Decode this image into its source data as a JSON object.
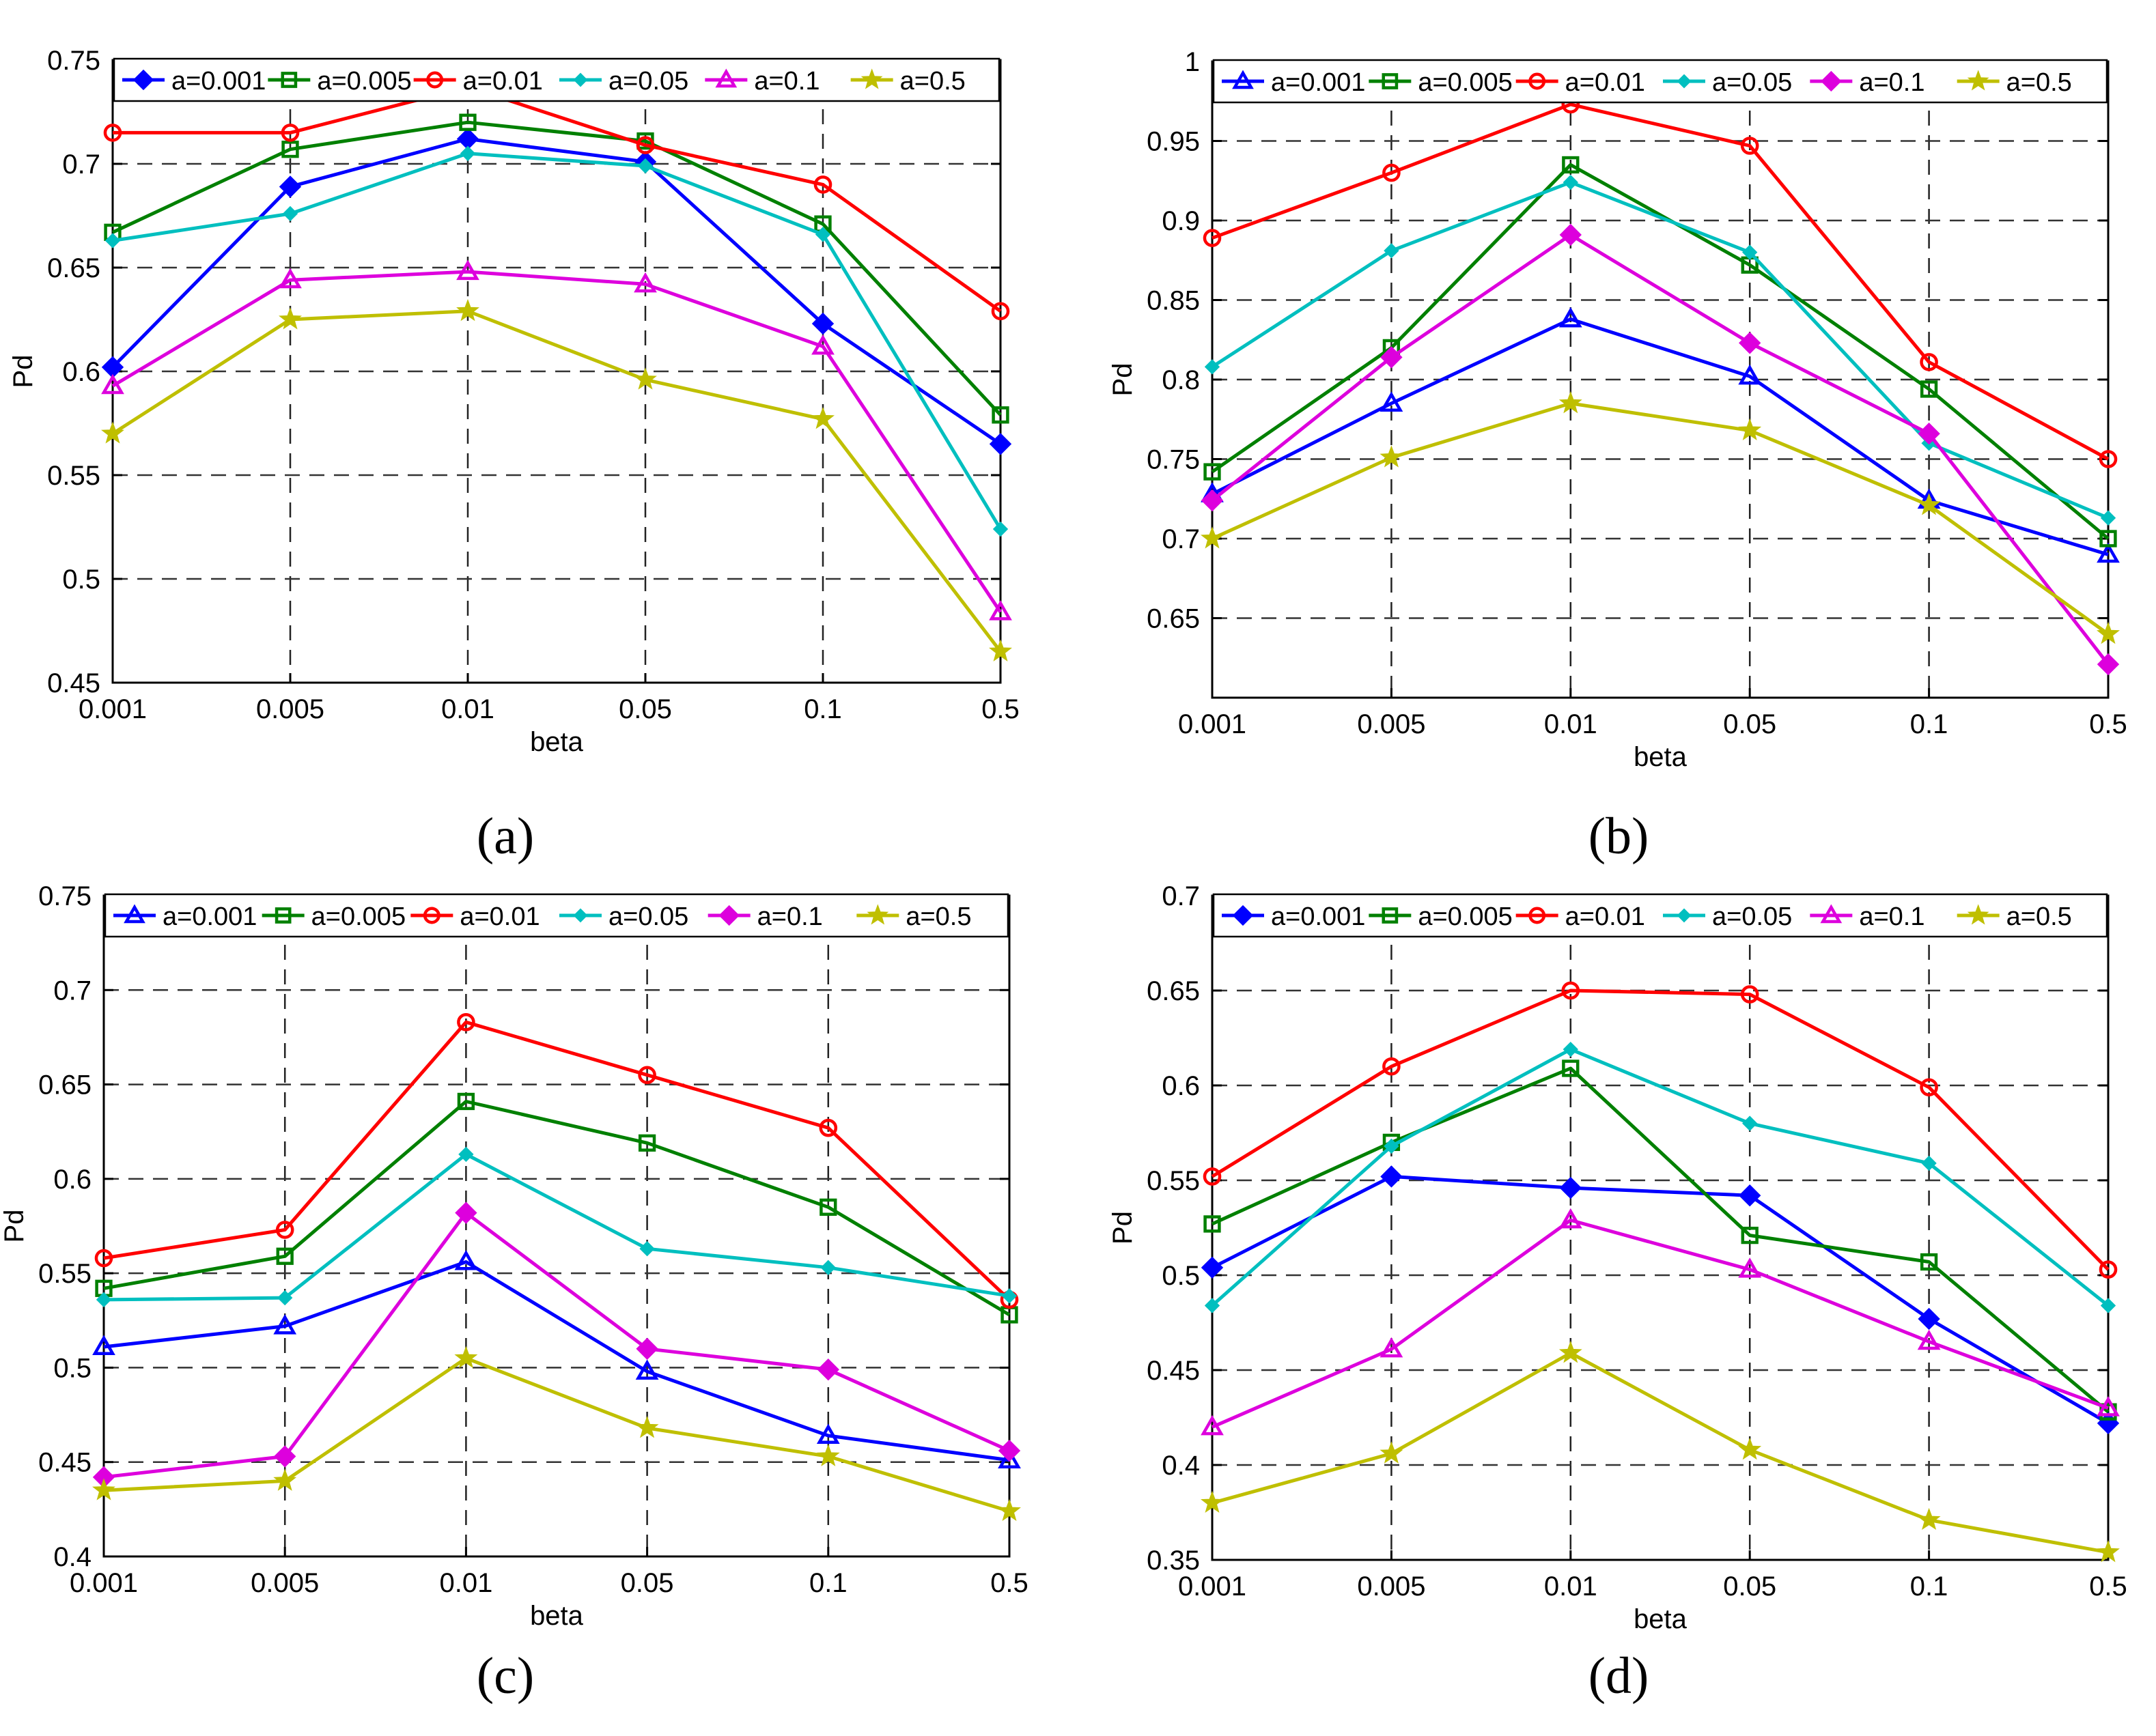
{
  "captions": [
    "(a)",
    "(b)",
    "(c)",
    "(d)"
  ],
  "chart_data": [
    {
      "type": "line",
      "caption": "(a)",
      "xlabel": "beta",
      "ylabel": "Pd",
      "categories": [
        "0.001",
        "0.005",
        "0.01",
        "0.05",
        "0.1",
        "0.5"
      ],
      "ylim": [
        0.45,
        0.75
      ],
      "yticks": [
        0.45,
        0.5,
        0.55,
        0.6,
        0.65,
        0.7,
        0.75
      ],
      "ytick_labels": [
        "0.45",
        "0.5",
        "0.55",
        "0.6",
        "0.65",
        "0.7",
        "0.75"
      ],
      "grid": true,
      "legend_position": "top",
      "series": [
        {
          "name": "a=0.001",
          "color": "#0000ff",
          "marker": "diamond",
          "values": [
            0.602,
            0.689,
            0.712,
            0.701,
            0.623,
            0.565
          ]
        },
        {
          "name": "a=0.005",
          "color": "#008000",
          "marker": "square",
          "values": [
            0.667,
            0.707,
            0.72,
            0.711,
            0.671,
            0.579
          ]
        },
        {
          "name": "a=0.01",
          "color": "#ff0000",
          "marker": "circle",
          "values": [
            0.715,
            0.715,
            0.737,
            0.709,
            0.69,
            0.629
          ]
        },
        {
          "name": "a=0.05",
          "color": "#00bfbf",
          "marker": "dot",
          "values": [
            0.663,
            0.676,
            0.705,
            0.699,
            0.666,
            0.524
          ]
        },
        {
          "name": "a=0.1",
          "color": "#dd00dd",
          "marker": "triangle",
          "values": [
            0.593,
            0.644,
            0.648,
            0.642,
            0.612,
            0.484
          ]
        },
        {
          "name": "a=0.5",
          "color": "#bfbf00",
          "marker": "star",
          "values": [
            0.57,
            0.625,
            0.629,
            0.596,
            0.577,
            0.465
          ]
        }
      ]
    },
    {
      "type": "line",
      "caption": "(b)",
      "xlabel": "beta",
      "ylabel": "Pd",
      "categories": [
        "0.001",
        "0.005",
        "0.01",
        "0.05",
        "0.1",
        "0.5"
      ],
      "ylim": [
        0.6,
        1.0
      ],
      "yticks": [
        0.65,
        0.7,
        0.75,
        0.8,
        0.85,
        0.9,
        0.95,
        1.0
      ],
      "ytick_labels": [
        "0.65",
        "0.7",
        "0.75",
        "0.8",
        "0.85",
        "0.9",
        "0.95",
        "1"
      ],
      "grid": true,
      "legend_position": "top",
      "series": [
        {
          "name": "a=0.001",
          "color": "#0000ff",
          "marker": "triangle",
          "values": [
            0.728,
            0.785,
            0.838,
            0.802,
            0.724,
            0.69
          ]
        },
        {
          "name": "a=0.005",
          "color": "#008000",
          "marker": "square",
          "values": [
            0.742,
            0.82,
            0.935,
            0.872,
            0.794,
            0.7
          ]
        },
        {
          "name": "a=0.01",
          "color": "#ff0000",
          "marker": "circle",
          "values": [
            0.889,
            0.93,
            0.973,
            0.947,
            0.811,
            0.75
          ]
        },
        {
          "name": "a=0.05",
          "color": "#00bfbf",
          "marker": "dot",
          "values": [
            0.808,
            0.881,
            0.924,
            0.88,
            0.76,
            0.713
          ]
        },
        {
          "name": "a=0.1",
          "color": "#dd00dd",
          "marker": "diamond",
          "values": [
            0.724,
            0.814,
            0.891,
            0.823,
            0.766,
            0.621
          ]
        },
        {
          "name": "a=0.5",
          "color": "#bfbf00",
          "marker": "star",
          "values": [
            0.7,
            0.751,
            0.785,
            0.768,
            0.721,
            0.64
          ]
        }
      ]
    },
    {
      "type": "line",
      "caption": "(c)",
      "xlabel": "beta",
      "ylabel": "Pd",
      "categories": [
        "0.001",
        "0.005",
        "0.01",
        "0.05",
        "0.1",
        "0.5"
      ],
      "ylim": [
        0.4,
        0.75
      ],
      "yticks": [
        0.4,
        0.45,
        0.5,
        0.55,
        0.6,
        0.65,
        0.7,
        0.75
      ],
      "ytick_labels": [
        "0.4",
        "0.45",
        "0.5",
        "0.55",
        "0.6",
        "0.65",
        "0.7",
        "0.75"
      ],
      "grid": true,
      "legend_position": "top",
      "series": [
        {
          "name": "a=0.001",
          "color": "#0000ff",
          "marker": "triangle",
          "values": [
            0.511,
            0.522,
            0.556,
            0.498,
            0.464,
            0.451
          ]
        },
        {
          "name": "a=0.005",
          "color": "#008000",
          "marker": "square",
          "values": [
            0.542,
            0.559,
            0.641,
            0.619,
            0.585,
            0.528
          ]
        },
        {
          "name": "a=0.01",
          "color": "#ff0000",
          "marker": "circle",
          "values": [
            0.558,
            0.573,
            0.683,
            0.655,
            0.627,
            0.536
          ]
        },
        {
          "name": "a=0.05",
          "color": "#00bfbf",
          "marker": "dot",
          "values": [
            0.536,
            0.537,
            0.613,
            0.563,
            0.553,
            0.538
          ]
        },
        {
          "name": "a=0.1",
          "color": "#dd00dd",
          "marker": "diamond",
          "values": [
            0.442,
            0.453,
            0.582,
            0.51,
            0.499,
            0.456
          ]
        },
        {
          "name": "a=0.5",
          "color": "#bfbf00",
          "marker": "star",
          "values": [
            0.435,
            0.44,
            0.505,
            0.468,
            0.453,
            0.424
          ]
        }
      ]
    },
    {
      "type": "line",
      "caption": "(d)",
      "xlabel": "beta",
      "ylabel": "Pd",
      "categories": [
        "0.001",
        "0.005",
        "0.01",
        "0.05",
        "0.1",
        "0.5"
      ],
      "ylim": [
        0.35,
        0.7
      ],
      "yticks": [
        0.35,
        0.4,
        0.45,
        0.5,
        0.55,
        0.6,
        0.65,
        0.7
      ],
      "ytick_labels": [
        "0.35",
        "0.4",
        "0.45",
        "0.5",
        "0.55",
        "0.6",
        "0.65",
        "0.7"
      ],
      "grid": true,
      "legend_position": "top",
      "series": [
        {
          "name": "a=0.001",
          "color": "#0000ff",
          "marker": "diamond",
          "values": [
            0.504,
            0.552,
            0.546,
            0.542,
            0.477,
            0.422
          ]
        },
        {
          "name": "a=0.005",
          "color": "#008000",
          "marker": "square",
          "values": [
            0.527,
            0.57,
            0.609,
            0.521,
            0.507,
            0.428
          ]
        },
        {
          "name": "a=0.01",
          "color": "#ff0000",
          "marker": "circle",
          "values": [
            0.552,
            0.61,
            0.65,
            0.648,
            0.599,
            0.503
          ]
        },
        {
          "name": "a=0.05",
          "color": "#00bfbf",
          "marker": "dot",
          "values": [
            0.484,
            0.568,
            0.619,
            0.58,
            0.559,
            0.484
          ]
        },
        {
          "name": "a=0.1",
          "color": "#dd00dd",
          "marker": "triangle",
          "values": [
            0.42,
            0.461,
            0.529,
            0.503,
            0.465,
            0.43
          ]
        },
        {
          "name": "a=0.5",
          "color": "#bfbf00",
          "marker": "star",
          "values": [
            0.38,
            0.406,
            0.459,
            0.408,
            0.371,
            0.354
          ]
        }
      ]
    }
  ]
}
